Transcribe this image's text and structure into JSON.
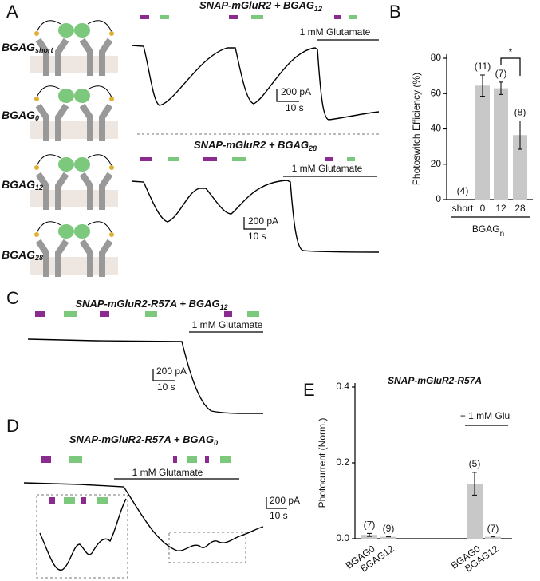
{
  "panels": {
    "a": {
      "label": "A",
      "molecules": [
        {
          "name": "BGAG",
          "sub": "short"
        },
        {
          "name": "BGAG",
          "sub": "0"
        },
        {
          "name": "BGAG",
          "sub": "12"
        },
        {
          "name": "BGAG",
          "sub": "28"
        }
      ],
      "traces": [
        {
          "title": "SNAP-mGluR2 + BGAG",
          "title_sub": "12",
          "glutamate": "1 mM Glutamate",
          "scale_y": "200 pA",
          "scale_x": "10 s"
        },
        {
          "title": "SNAP-mGluR2 + BGAG",
          "title_sub": "28",
          "glutamate": "1 mM Glutamate",
          "scale_y": "200 pA",
          "scale_x": "10 s"
        }
      ]
    },
    "c": {
      "label": "C",
      "title": "SNAP-mGluR2-R57A + BGAG",
      "title_sub": "12",
      "glutamate": "1 mM Glutamate",
      "scale_y": "200 pA",
      "scale_x": "10 s"
    },
    "d": {
      "label": "D",
      "title": "SNAP-mGluR2-R57A + BGAG",
      "title_sub": "0",
      "glutamate": "1 mM Glutamate",
      "scale_y": "200 pA",
      "scale_x": "10 s"
    }
  },
  "chart_data": [
    {
      "type": "bar",
      "panel": "B",
      "ylabel": "Photoswitch Efficiency (%)",
      "xlabel": "BGAG",
      "xlabel_sub": "n",
      "categories": [
        "short",
        "0",
        "12",
        "28"
      ],
      "values": [
        0,
        64.5,
        63,
        36.5
      ],
      "errors": [
        0,
        6,
        3.5,
        8
      ],
      "n_labels": [
        "(4)",
        "(11)",
        "(7)",
        "(8)"
      ],
      "annotation": "*",
      "color": "#c8c8c8",
      "ylim": [
        0,
        80
      ],
      "yticks": [
        0,
        20,
        40,
        60,
        80
      ]
    },
    {
      "type": "bar",
      "panel": "E",
      "title": "SNAP-mGluR2-R57A",
      "ylabel": "Photocurrent (Norm.)",
      "group_label": "+ 1 mM Glu",
      "categories": [
        "BGAG0",
        "BGAG12",
        "BGAG0",
        "BGAG12"
      ],
      "values": [
        0.01,
        0.005,
        0.145,
        0.005
      ],
      "errors": [
        0.004,
        0,
        0.03,
        0
      ],
      "n_labels": [
        "(7)",
        "(9)",
        "(5)",
        "(7)"
      ],
      "color": "#c8c8c8",
      "ylim": [
        0,
        0.4
      ],
      "yticks": [
        {
          "value": 0,
          "label": "0.0"
        },
        {
          "value": 0.2,
          "label": "0.2"
        },
        {
          "value": 0.4,
          "label": "0.4"
        }
      ]
    }
  ]
}
